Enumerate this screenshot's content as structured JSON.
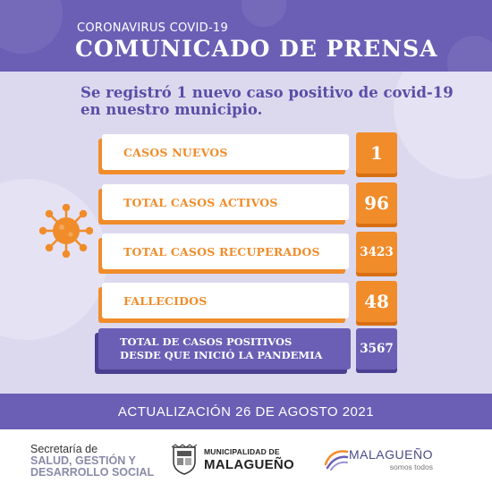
{
  "header": {
    "subtitle": "CORONAVIRUS COVID-19",
    "title": "COMUNICADO DE PRENSA"
  },
  "headline": {
    "line1": "Se registró 1 nuevo caso positivo de covid-19",
    "line2": "en nuestro municipio."
  },
  "stats": [
    {
      "label": "CASOS NUEVOS",
      "value": "1"
    },
    {
      "label": "TOTAL CASOS ACTIVOS",
      "value": "96"
    },
    {
      "label": "TOTAL CASOS RECUPERADOS",
      "value": "3423"
    },
    {
      "label": "FALLECIDOS",
      "value": "48"
    }
  ],
  "total": {
    "line1": "TOTAL DE CASOS POSITIVOS",
    "line2": "DESDE QUE INICIÓ LA PANDEMIA",
    "value": "3567"
  },
  "update": "ACTUALIZACIÓN 26 DE AGOSTO 2021",
  "logos": {
    "secretaria": {
      "line1": "Secretaría de",
      "line2": "SALUD, GESTIÓN Y",
      "line3": "DESARROLLO SOCIAL"
    },
    "municipalidad": {
      "line1": "MUNICIPALIDAD DE",
      "line2": "MALAGUEÑO"
    },
    "malagueno": {
      "name": "MALAGUEÑO",
      "tagline": "somos todos"
    }
  },
  "colors": {
    "purple": "#6b5fb5",
    "lavender": "#dcd9ef",
    "orange": "#f08c2a"
  },
  "icons": {
    "virus": "virus-icon"
  }
}
